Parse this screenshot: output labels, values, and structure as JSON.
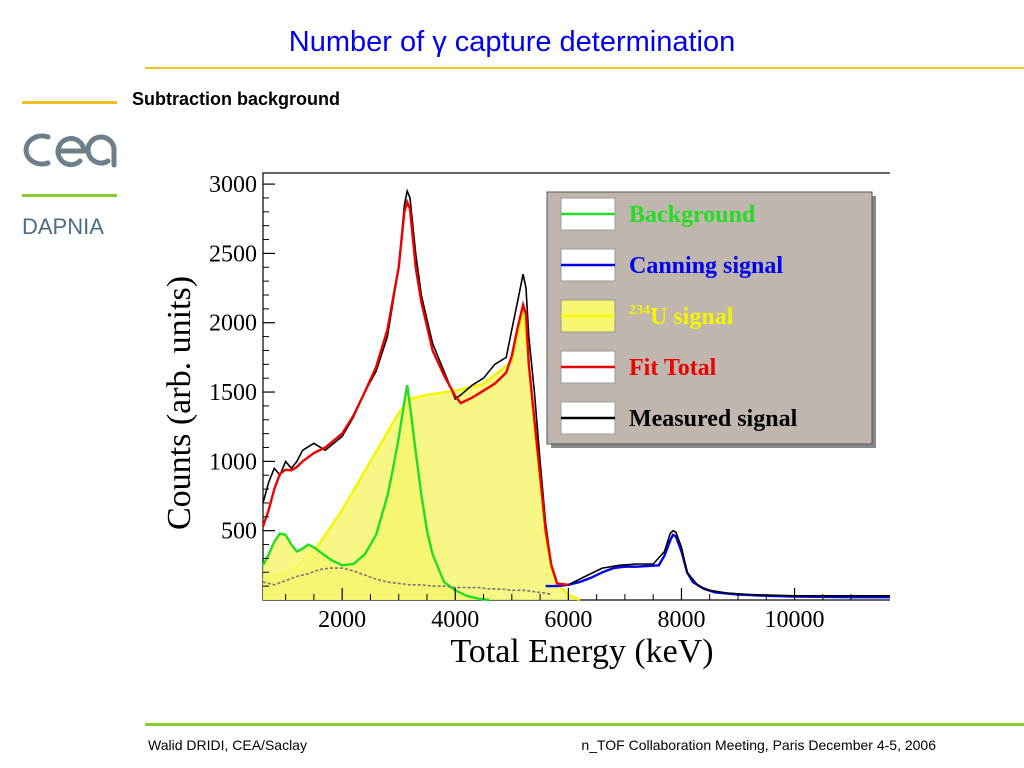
{
  "slide": {
    "title": "Number of γ capture determination",
    "subtitle": "Subtraction background",
    "org": "DAPNIA",
    "footer_left": "Walid DRIDI, CEA/Saclay",
    "footer_right": "n_TOF Collaboration Meeting, Paris December 4-5, 2006",
    "colors": {
      "title": "#0000ee",
      "rule_top": "#f0c020",
      "rule_bottom": "#88cc33",
      "logo": "#6e7f8c"
    },
    "logo_icon": "cea-logo"
  },
  "chart_data": {
    "type": "line",
    "xlabel": "Total Energy (keV)",
    "ylabel": "Counts (arb. units)",
    "xlim": [
      600,
      11900
    ],
    "ylim": [
      0,
      3080
    ],
    "x_ticks": [
      2000,
      4000,
      6000,
      8000,
      10000
    ],
    "y_ticks": [
      500,
      1000,
      1500,
      2000,
      2500,
      3000
    ],
    "legend_position": "top-right",
    "legend": [
      {
        "label": "Background",
        "sup": "",
        "color": "#22dd22"
      },
      {
        "label": "Canning signal",
        "sup": "",
        "color": "#0000ee"
      },
      {
        "label": "U signal",
        "sup": "234",
        "color": "#f5f500"
      },
      {
        "label": "Fit Total",
        "sup": "",
        "color": "#ee0000"
      },
      {
        "label": "Measured signal",
        "sup": "",
        "color": "#000000"
      }
    ],
    "series": [
      {
        "name": "Measured signal",
        "color": "#000000",
        "x": [
          600,
          700,
          800,
          900,
          1000,
          1100,
          1200,
          1300,
          1500,
          1700,
          2000,
          2200,
          2400,
          2600,
          2800,
          3000,
          3100,
          3150,
          3200,
          3300,
          3400,
          3600,
          3800,
          4000,
          4100,
          4300,
          4500,
          4700,
          4900,
          5000,
          5100,
          5200,
          5250,
          5300,
          5400,
          5500,
          5600,
          5700,
          5800,
          6000,
          6300,
          6600,
          6900,
          7200,
          7500,
          7700,
          7800,
          7850,
          7900,
          8000,
          8100,
          8300,
          8500,
          8800,
          9200,
          10000,
          11000,
          11900
        ],
        "y": [
          700,
          850,
          950,
          900,
          1000,
          950,
          1000,
          1080,
          1130,
          1080,
          1180,
          1320,
          1500,
          1650,
          1900,
          2400,
          2850,
          2950,
          2900,
          2500,
          2200,
          1850,
          1650,
          1450,
          1480,
          1550,
          1600,
          1700,
          1750,
          1950,
          2150,
          2350,
          2250,
          1900,
          1500,
          1000,
          550,
          250,
          120,
          110,
          170,
          230,
          250,
          260,
          260,
          350,
          480,
          500,
          490,
          380,
          200,
          100,
          70,
          50,
          40,
          30,
          30,
          30
        ]
      },
      {
        "name": "Fit Total",
        "color": "#ee0000",
        "x": [
          600,
          700,
          800,
          900,
          1000,
          1100,
          1200,
          1300,
          1500,
          1700,
          2000,
          2200,
          2400,
          2600,
          2800,
          3000,
          3100,
          3150,
          3200,
          3300,
          3400,
          3600,
          3800,
          4000,
          4100,
          4300,
          4500,
          4700,
          4900,
          5000,
          5100,
          5200,
          5250,
          5300,
          5400,
          5500,
          5600,
          5700,
          5800,
          6000
        ],
        "y": [
          530,
          650,
          800,
          910,
          940,
          935,
          960,
          1000,
          1060,
          1100,
          1200,
          1330,
          1500,
          1680,
          1950,
          2400,
          2800,
          2870,
          2820,
          2400,
          2150,
          1800,
          1620,
          1470,
          1420,
          1460,
          1510,
          1560,
          1640,
          1760,
          1960,
          2130,
          2060,
          1700,
          1300,
          900,
          500,
          250,
          120,
          110
        ]
      },
      {
        "name": "234U signal",
        "color": "#f5f500",
        "fill": "#f6f670",
        "x": [
          600,
          800,
          1000,
          1200,
          1500,
          2000,
          2500,
          3000,
          3200,
          3500,
          4000,
          4500,
          5000,
          5200,
          5300,
          5400,
          5500,
          5600,
          5700,
          5800,
          6000,
          6200
        ],
        "y": [
          150,
          180,
          200,
          240,
          350,
          650,
          1000,
          1350,
          1450,
          1480,
          1510,
          1560,
          1720,
          2090,
          1700,
          1250,
          850,
          450,
          220,
          120,
          40,
          0
        ]
      },
      {
        "name": "Background",
        "color": "#22dd22",
        "fill": "#f6f670",
        "x": [
          600,
          700,
          800,
          900,
          1000,
          1100,
          1200,
          1300,
          1400,
          1500,
          1600,
          1700,
          1800,
          2000,
          2200,
          2400,
          2600,
          2800,
          2900,
          3000,
          3100,
          3150,
          3200,
          3300,
          3400,
          3500,
          3600,
          3800,
          4000,
          4200,
          4400,
          4600
        ],
        "y": [
          250,
          330,
          420,
          480,
          470,
          400,
          350,
          370,
          400,
          380,
          350,
          320,
          290,
          250,
          260,
          330,
          470,
          750,
          950,
          1170,
          1430,
          1550,
          1400,
          1070,
          760,
          500,
          330,
          130,
          70,
          30,
          10,
          0
        ]
      },
      {
        "name": "Canning signal",
        "color": "#0000ee",
        "x": [
          5600,
          5800,
          6000,
          6200,
          6400,
          6600,
          6800,
          7000,
          7200,
          7400,
          7600,
          7700,
          7800,
          7850,
          7900,
          8000,
          8100,
          8200,
          8400,
          8600,
          9000,
          9500,
          10000,
          11000,
          11900
        ],
        "y": [
          100,
          100,
          110,
          130,
          160,
          200,
          230,
          240,
          240,
          245,
          250,
          320,
          430,
          470,
          460,
          350,
          200,
          130,
          80,
          55,
          40,
          30,
          25,
          20,
          20
        ]
      },
      {
        "name": "Background (grey)",
        "color": "#777777",
        "x": [
          600,
          800,
          1000,
          1200,
          1400,
          1600,
          1800,
          2000,
          2200,
          2400,
          2600,
          2800,
          3000,
          3200,
          3400,
          3600,
          3800,
          4000,
          4200,
          4400,
          4600,
          4800,
          5000,
          5200,
          5400,
          5600,
          5700
        ],
        "y": [
          130,
          110,
          140,
          170,
          190,
          220,
          230,
          230,
          210,
          180,
          150,
          130,
          120,
          110,
          110,
          100,
          100,
          90,
          90,
          90,
          80,
          80,
          70,
          70,
          60,
          50,
          40
        ]
      }
    ]
  }
}
